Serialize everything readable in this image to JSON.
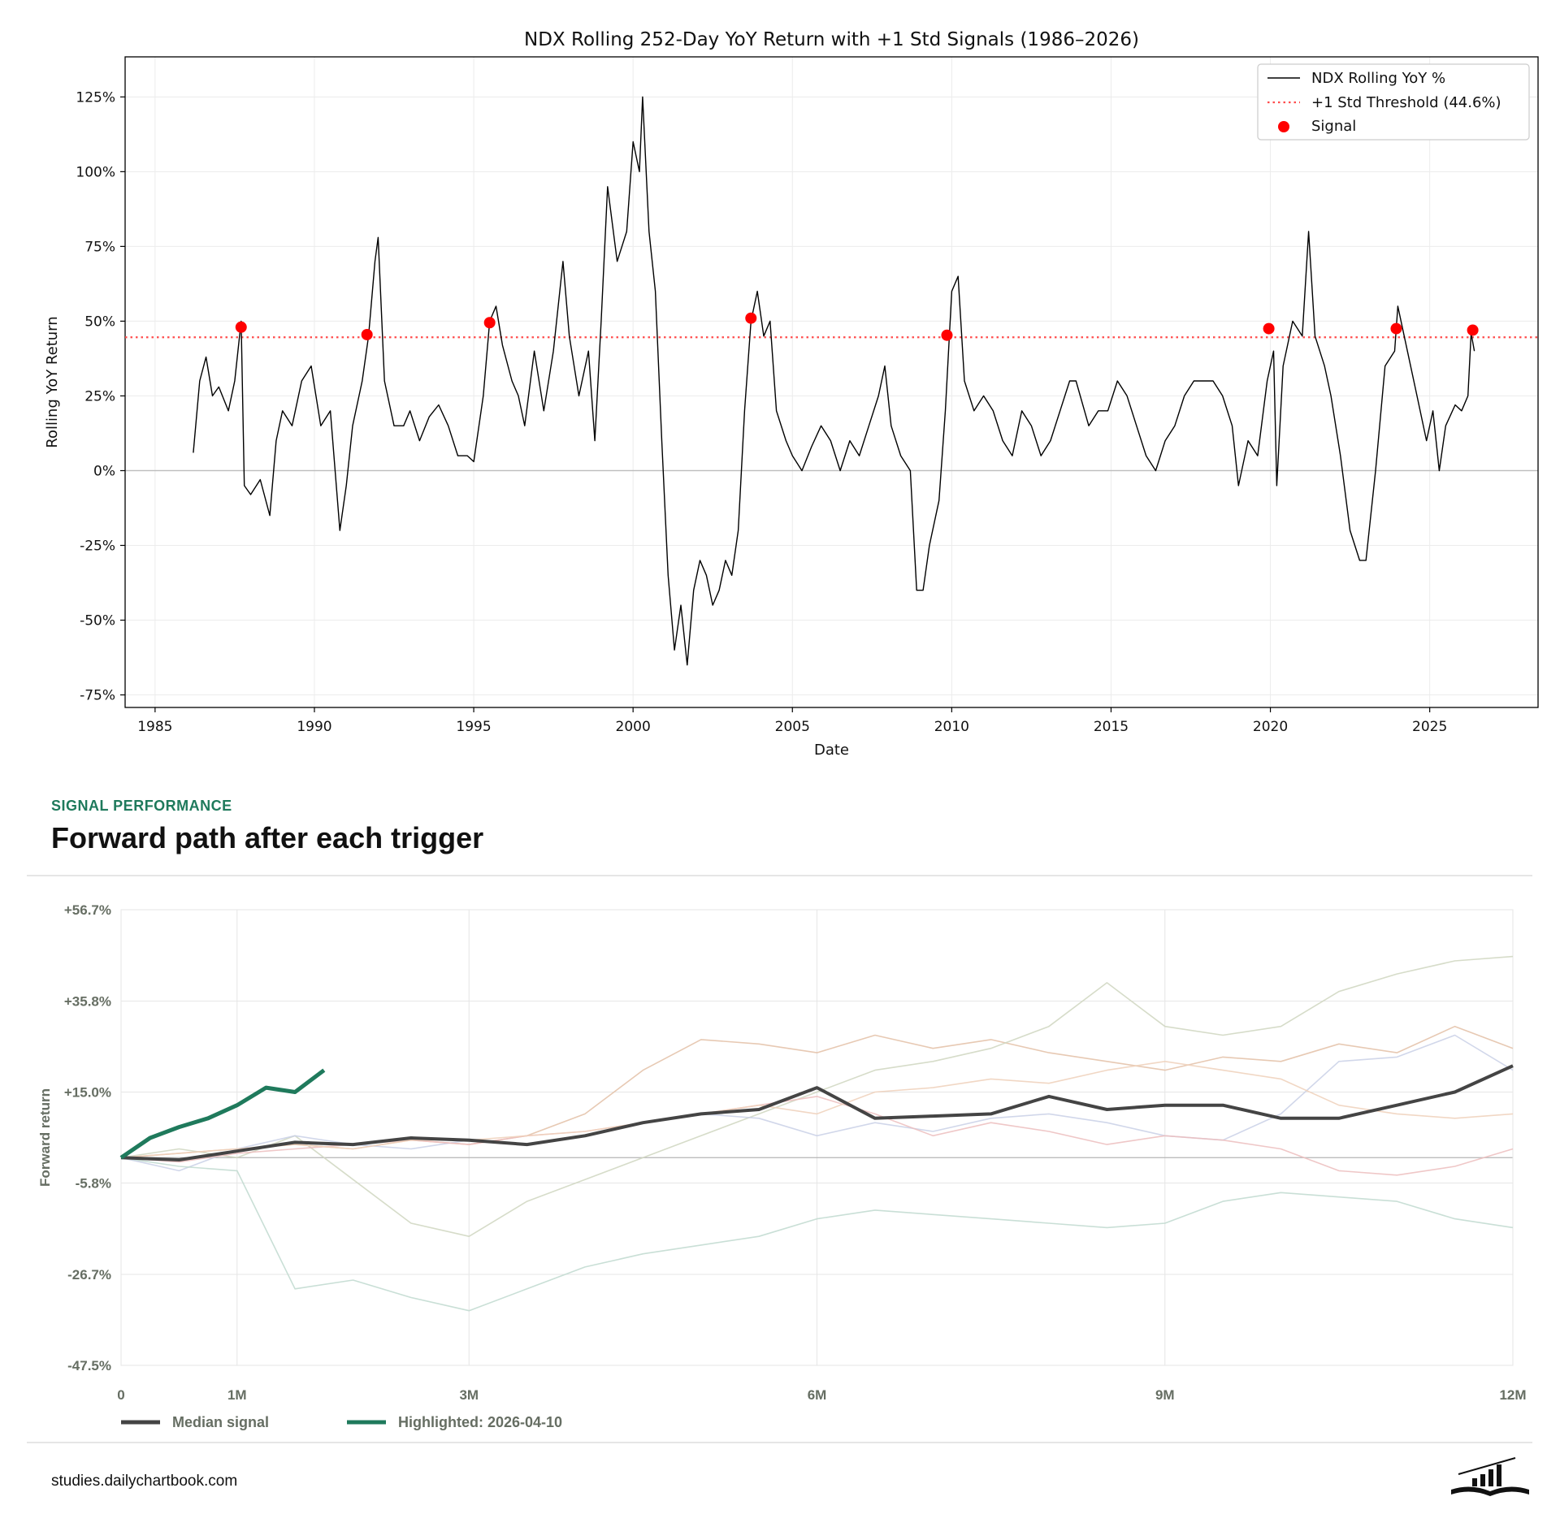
{
  "chart_data": [
    {
      "type": "line",
      "title": "NDX Rolling 252-Day YoY Return with +1 Std Signals (1986–2026)",
      "xlabel": "Date",
      "ylabel": "Rolling YoY Return",
      "xlim": [
        1984.06,
        2028.4
      ],
      "xticks": [
        1985,
        1990,
        1995,
        2000,
        2005,
        2010,
        2015,
        2020,
        2025
      ],
      "ylim": [
        -79.2,
        138.4
      ],
      "yticks": [
        {
          "value": -75,
          "label": "-75%"
        },
        {
          "value": -50,
          "label": "-50%"
        },
        {
          "value": -25,
          "label": "-25%"
        },
        {
          "value": 0,
          "label": "0%"
        },
        {
          "value": 25,
          "label": "25%"
        },
        {
          "value": 50,
          "label": "50%"
        },
        {
          "value": 75,
          "label": "75%"
        },
        {
          "value": 100,
          "label": "100%"
        },
        {
          "value": 125,
          "label": "125%"
        }
      ],
      "grid": true,
      "legend": "upper right",
      "series": [
        {
          "name": "NDX Rolling YoY %",
          "color": "#000000",
          "x": [
            1986.2,
            1986.4,
            1986.6,
            1986.8,
            1987.0,
            1987.3,
            1987.5,
            1987.7,
            1987.8,
            1988.0,
            1988.3,
            1988.6,
            1988.8,
            1989.0,
            1989.3,
            1989.6,
            1989.9,
            1990.2,
            1990.5,
            1990.8,
            1991.0,
            1991.2,
            1991.5,
            1991.7,
            1991.9,
            1992.0,
            1992.2,
            1992.5,
            1992.8,
            1993.0,
            1993.3,
            1993.6,
            1993.9,
            1994.2,
            1994.5,
            1994.8,
            1995.0,
            1995.3,
            1995.5,
            1995.7,
            1995.9,
            1996.2,
            1996.4,
            1996.6,
            1996.9,
            1997.2,
            1997.5,
            1997.8,
            1998.0,
            1998.3,
            1998.6,
            1998.8,
            1999.0,
            1999.2,
            1999.5,
            1999.8,
            2000.0,
            2000.2,
            2000.3,
            2000.5,
            2000.7,
            2000.9,
            2001.1,
            2001.3,
            2001.5,
            2001.7,
            2001.9,
            2002.1,
            2002.3,
            2002.5,
            2002.7,
            2002.9,
            2003.1,
            2003.3,
            2003.5,
            2003.7,
            2003.9,
            2004.1,
            2004.3,
            2004.5,
            2004.8,
            2005.0,
            2005.3,
            2005.6,
            2005.9,
            2006.2,
            2006.5,
            2006.8,
            2007.1,
            2007.4,
            2007.7,
            2007.9,
            2008.1,
            2008.4,
            2008.7,
            2008.9,
            2009.1,
            2009.3,
            2009.6,
            2009.8,
            2010.0,
            2010.2,
            2010.4,
            2010.7,
            2011.0,
            2011.3,
            2011.6,
            2011.9,
            2012.2,
            2012.5,
            2012.8,
            2013.1,
            2013.4,
            2013.7,
            2013.9,
            2014.3,
            2014.6,
            2014.9,
            2015.2,
            2015.5,
            2015.8,
            2016.1,
            2016.4,
            2016.7,
            2017.0,
            2017.3,
            2017.6,
            2017.9,
            2018.2,
            2018.5,
            2018.8,
            2019.0,
            2019.3,
            2019.6,
            2019.9,
            2020.1,
            2020.2,
            2020.4,
            2020.7,
            2021.0,
            2021.2,
            2021.4,
            2021.7,
            2021.9,
            2022.2,
            2022.5,
            2022.8,
            2023.0,
            2023.3,
            2023.6,
            2023.9,
            2024.0,
            2024.3,
            2024.6,
            2024.9,
            2025.1,
            2025.3,
            2025.5,
            2025.8,
            2026.0,
            2026.2,
            2026.3,
            2026.4
          ],
          "values": [
            6,
            30,
            38,
            25,
            28,
            20,
            30,
            50,
            -5,
            -8,
            -3,
            -15,
            10,
            20,
            15,
            30,
            35,
            15,
            20,
            -20,
            -5,
            15,
            30,
            45,
            70,
            78,
            30,
            15,
            15,
            20,
            10,
            18,
            22,
            15,
            5,
            5,
            3,
            25,
            50,
            55,
            42,
            30,
            25,
            15,
            40,
            20,
            40,
            70,
            45,
            25,
            40,
            10,
            50,
            95,
            70,
            80,
            110,
            100,
            125,
            80,
            60,
            10,
            -35,
            -60,
            -45,
            -65,
            -40,
            -30,
            -35,
            -45,
            -40,
            -30,
            -35,
            -20,
            20,
            50,
            60,
            45,
            50,
            20,
            10,
            5,
            0,
            8,
            15,
            10,
            0,
            10,
            5,
            15,
            25,
            35,
            15,
            5,
            0,
            -40,
            -40,
            -25,
            -10,
            20,
            60,
            65,
            30,
            20,
            25,
            20,
            10,
            5,
            20,
            15,
            5,
            10,
            20,
            30,
            30,
            15,
            20,
            20,
            30,
            25,
            15,
            5,
            0,
            10,
            15,
            25,
            30,
            30,
            30,
            25,
            15,
            -5,
            10,
            5,
            30,
            40,
            -5,
            35,
            50,
            45,
            80,
            45,
            35,
            25,
            5,
            -20,
            -30,
            -30,
            0,
            35,
            40,
            55,
            40,
            25,
            10,
            20,
            0,
            15,
            22,
            20,
            25,
            46,
            40
          ]
        }
      ],
      "threshold": {
        "name": "+1 Std Threshold (44.6%)",
        "value": 44.6,
        "color": "#ff4d4d"
      },
      "signals": {
        "name": "Signal",
        "color": "#ff0000",
        "x": [
          1987.7,
          1991.65,
          1995.5,
          2003.7,
          2009.85,
          2019.95,
          2023.95,
          2026.35
        ],
        "values": [
          48,
          45.5,
          49.5,
          51,
          45.3,
          47.5,
          47.5,
          47
        ]
      }
    },
    {
      "type": "line",
      "eyebrow": "SIGNAL PERFORMANCE",
      "title": "Forward path after each trigger",
      "ylabel": "Forward return",
      "xlim": [
        0,
        12
      ],
      "xticks": [
        0,
        {
          "value": 1,
          "label": "1M"
        },
        {
          "value": 3,
          "label": "3M"
        },
        {
          "value": 6,
          "label": "6M"
        },
        {
          "value": 9,
          "label": "9M"
        },
        {
          "value": 12,
          "label": "12M"
        }
      ],
      "ylim": [
        -47.5,
        56.7
      ],
      "yticks": [
        {
          "value": -47.5,
          "label": "-47.5%"
        },
        {
          "value": -26.7,
          "label": "-26.7%"
        },
        {
          "value": -5.8,
          "label": "-5.8%"
        },
        {
          "value": 15.0,
          "label": "+15.0%"
        },
        {
          "value": 35.8,
          "label": "+35.8%"
        },
        {
          "value": 56.7,
          "label": "+56.7%"
        }
      ],
      "grid": true,
      "legend": "bottom left",
      "x": [
        0,
        0.5,
        1,
        1.5,
        2,
        2.5,
        3,
        3.5,
        4,
        4.5,
        5,
        5.5,
        6,
        6.5,
        7,
        7.5,
        8,
        8.5,
        9,
        9.5,
        10,
        10.5,
        11,
        11.5,
        12
      ],
      "series": [
        {
          "color": "#e3c0a6",
          "values": [
            0,
            1,
            2,
            3,
            2,
            4,
            3,
            5,
            10,
            20,
            27,
            26,
            24,
            28,
            25,
            27,
            24,
            22,
            20,
            23,
            22,
            26,
            24,
            30,
            25
          ]
        },
        {
          "color": "#cfd6bf",
          "values": [
            0,
            2,
            0,
            5,
            -5,
            -15,
            -18,
            -10,
            -5,
            0,
            5,
            10,
            15,
            20,
            22,
            25,
            30,
            40,
            30,
            28,
            30,
            38,
            42,
            45,
            46
          ]
        },
        {
          "color": "#c9d0e6",
          "values": [
            0,
            -3,
            2,
            5,
            3,
            2,
            4,
            3,
            5,
            8,
            10,
            9,
            5,
            8,
            6,
            9,
            10,
            8,
            5,
            4,
            10,
            22,
            23,
            28,
            20
          ]
        },
        {
          "color": "#ecbdbd",
          "values": [
            0,
            -1,
            1,
            2,
            3,
            4,
            3,
            5,
            6,
            8,
            10,
            12,
            14,
            10,
            5,
            8,
            6,
            3,
            5,
            4,
            2,
            -3,
            -4,
            -2,
            2
          ]
        },
        {
          "color": "#bfd9cf",
          "values": [
            0,
            -2,
            -3,
            -30,
            -28,
            -32,
            -35,
            -30,
            -25,
            -22,
            -20,
            -18,
            -14,
            -12,
            -13,
            -14,
            -15,
            -16,
            -15,
            -10,
            -8,
            -9,
            -10,
            -14,
            -16
          ]
        },
        {
          "color": "#efd0ba",
          "values": [
            0,
            1,
            2,
            3,
            2,
            4,
            4,
            5,
            6,
            8,
            10,
            12,
            10,
            15,
            16,
            18,
            17,
            20,
            22,
            20,
            18,
            12,
            10,
            9,
            10
          ]
        },
        {
          "name": "Median signal",
          "color": "#444444",
          "values": [
            0,
            -0.5,
            1.5,
            3.5,
            3,
            4.5,
            4,
            3,
            5,
            8,
            10,
            11,
            16,
            9,
            9.5,
            10,
            14,
            11,
            12,
            12,
            9,
            9,
            12,
            15,
            21
          ]
        },
        {
          "name": "Highlighted: 2026-04-10",
          "color": "#1f7a5c",
          "x": [
            0,
            0.25,
            0.5,
            0.75,
            1,
            1.25,
            1.5,
            1.75
          ],
          "values": [
            0,
            4.5,
            7,
            9,
            12,
            16,
            15,
            20
          ]
        }
      ]
    }
  ],
  "footer": {
    "site": "studies.dailychartbook.com"
  }
}
